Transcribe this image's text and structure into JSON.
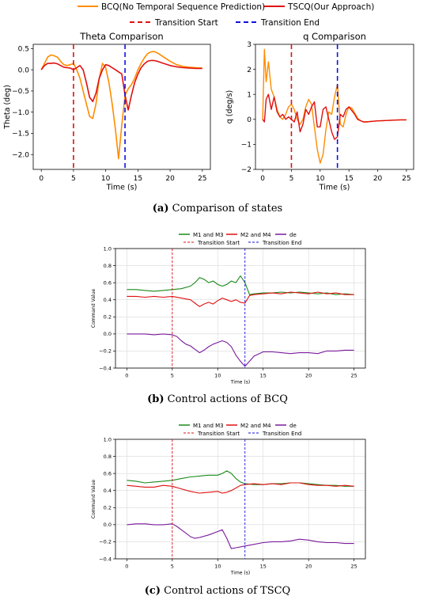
{
  "legend_top": {
    "entries": [
      {
        "label": "BCQ(No Temporal Sequence Prediction)",
        "color": "#ff8c00",
        "dash": false
      },
      {
        "label": "TSCQ(Our Approach)",
        "color": "#e01010",
        "dash": false
      },
      {
        "label": "Transition Start",
        "color": "#e01010",
        "dash": true
      },
      {
        "label": "Transition End",
        "color": "#1010e0",
        "dash": true
      }
    ]
  },
  "captions": {
    "a_tag": "(a)",
    "a_text": " Comparison of states",
    "b_tag": "(b)",
    "b_text": " Control actions of BCQ",
    "c_tag": "(c)",
    "c_text": " Control actions of TSCQ"
  },
  "chart_data": [
    {
      "id": "theta",
      "type": "line",
      "title": "Theta Comparison",
      "xlabel": "Time (s)",
      "ylabel": "Theta (deg)",
      "xlim": [
        -1.25,
        26.25
      ],
      "ylim": [
        -2.35,
        0.6
      ],
      "xticks": [
        0,
        5,
        10,
        15,
        20,
        25
      ],
      "yticks": [
        0.5,
        0.0,
        -0.5,
        -1.0,
        -1.5,
        -2.0
      ],
      "ytick_labels": [
        "0.5",
        "0.0",
        "−0.5",
        "−1.0",
        "−1.5",
        "−2.0"
      ],
      "grid": false,
      "vlines": [
        {
          "x": 5,
          "color": "#e01010"
        },
        {
          "x": 13,
          "color": "#1010e0"
        }
      ],
      "series": [
        {
          "name": "BCQ(No Temporal Sequence Prediction)",
          "color": "#ff8c00",
          "x": [
            0,
            0.5,
            1,
            1.5,
            2,
            2.5,
            3,
            3.5,
            4,
            4.5,
            5,
            5.5,
            6,
            6.5,
            7,
            7.5,
            8,
            8.5,
            9,
            9.5,
            10,
            10.5,
            11,
            11.5,
            12,
            12.5,
            13,
            13.5,
            14,
            14.5,
            15,
            15.5,
            16,
            16.5,
            17,
            17.5,
            18,
            19,
            20,
            21,
            22,
            23,
            24,
            25
          ],
          "y": [
            0.0,
            0.15,
            0.3,
            0.35,
            0.33,
            0.3,
            0.2,
            0.12,
            0.1,
            0.12,
            0.15,
            0.0,
            -0.2,
            -0.5,
            -0.8,
            -1.1,
            -1.15,
            -0.8,
            -0.2,
            0.15,
            0.05,
            -0.3,
            -0.8,
            -1.4,
            -2.1,
            -1.3,
            -0.6,
            -0.45,
            -0.35,
            -0.2,
            0.0,
            0.15,
            0.28,
            0.38,
            0.42,
            0.43,
            0.4,
            0.3,
            0.2,
            0.12,
            0.08,
            0.06,
            0.05,
            0.04
          ]
        },
        {
          "name": "TSCQ(Our Approach)",
          "color": "#e01010",
          "x": [
            0,
            0.5,
            1,
            1.5,
            2,
            2.5,
            3,
            3.5,
            4,
            4.5,
            5,
            5.5,
            6,
            6.5,
            7,
            7.5,
            8,
            8.5,
            9,
            9.5,
            10,
            10.5,
            11,
            11.5,
            12,
            12.5,
            13,
            13.5,
            14,
            14.5,
            15,
            15.5,
            16,
            16.5,
            17,
            17.5,
            18,
            19,
            20,
            21,
            22,
            23,
            24,
            25
          ],
          "y": [
            0.0,
            0.1,
            0.15,
            0.15,
            0.16,
            0.14,
            0.1,
            0.06,
            0.05,
            0.04,
            0.0,
            0.05,
            0.1,
            0.0,
            -0.3,
            -0.65,
            -0.75,
            -0.55,
            -0.2,
            0.0,
            0.12,
            0.1,
            0.05,
            0.0,
            -0.05,
            -0.1,
            -0.6,
            -0.95,
            -0.6,
            -0.3,
            -0.1,
            0.05,
            0.14,
            0.2,
            0.22,
            0.22,
            0.2,
            0.15,
            0.1,
            0.07,
            0.05,
            0.04,
            0.03,
            0.03
          ]
        }
      ]
    },
    {
      "id": "q",
      "type": "line",
      "title": "q Comparison",
      "xlabel": "Time (s)",
      "ylabel": "q (deg/s)",
      "xlim": [
        -1.25,
        26.25
      ],
      "ylim": [
        -2.0,
        3.0
      ],
      "xticks": [
        0,
        5,
        10,
        15,
        20,
        25
      ],
      "yticks": [
        3,
        2,
        1,
        0,
        -1,
        -2
      ],
      "ytick_labels": [
        "3",
        "2",
        "1",
        "0",
        "−1",
        "−2"
      ],
      "grid": false,
      "vlines": [
        {
          "x": 5,
          "color": "#e01010"
        },
        {
          "x": 13,
          "color": "#1010e0"
        }
      ],
      "series": [
        {
          "name": "BCQ(No Temporal Sequence Prediction)",
          "color": "#ff8c00",
          "x": [
            0,
            0.3,
            0.6,
            1,
            1.5,
            2,
            2.5,
            3,
            3.5,
            4,
            4.5,
            5,
            5.5,
            6,
            6.5,
            7,
            7.5,
            8,
            8.5,
            9,
            9.5,
            10,
            10.5,
            11,
            11.5,
            12,
            12.5,
            13,
            13.5,
            14,
            14.5,
            15,
            15.5,
            16,
            16.5,
            17,
            17.5,
            18,
            19,
            20,
            21,
            22,
            23,
            24,
            25
          ],
          "y": [
            0.0,
            2.8,
            1.5,
            2.3,
            1.2,
            0.9,
            0.4,
            0.1,
            0.0,
            0.2,
            0.5,
            0.6,
            0.4,
            0.0,
            -0.2,
            0.0,
            0.5,
            0.8,
            0.6,
            -0.3,
            -1.2,
            -1.75,
            -1.4,
            -0.4,
            0.3,
            0.2,
            0.9,
            1.4,
            -0.2,
            -0.3,
            0.2,
            0.5,
            0.45,
            0.25,
            0.05,
            -0.05,
            -0.1,
            -0.1,
            -0.08,
            -0.06,
            -0.05,
            -0.04,
            -0.03,
            -0.02,
            -0.02
          ]
        },
        {
          "name": "TSCQ(Our Approach)",
          "color": "#e01010",
          "x": [
            0,
            0.3,
            0.6,
            1,
            1.5,
            2,
            2.5,
            3,
            3.5,
            4,
            4.5,
            5,
            5.5,
            6,
            6.5,
            7,
            7.5,
            8,
            8.5,
            9,
            9.5,
            10,
            10.5,
            11,
            11.5,
            12,
            12.5,
            13,
            13.5,
            14,
            14.5,
            15,
            15.5,
            16,
            16.5,
            17,
            17.5,
            18,
            19,
            20,
            21,
            22,
            23,
            24,
            25
          ],
          "y": [
            0.0,
            -0.1,
            0.8,
            1.0,
            0.4,
            0.9,
            0.3,
            0.1,
            0.2,
            0.0,
            0.1,
            0.0,
            -0.1,
            0.3,
            -0.5,
            -0.2,
            0.4,
            0.2,
            0.5,
            0.7,
            -0.3,
            -0.3,
            0.4,
            0.5,
            0.0,
            -0.5,
            -0.8,
            -0.7,
            0.2,
            0.1,
            0.4,
            0.5,
            0.35,
            0.2,
            0.0,
            -0.05,
            -0.1,
            -0.1,
            -0.08,
            -0.06,
            -0.05,
            -0.04,
            -0.03,
            -0.02,
            -0.02
          ]
        }
      ]
    },
    {
      "id": "bcq_actions",
      "type": "line",
      "title": "",
      "xlabel": "Time (s)",
      "ylabel": "Command Value",
      "xlim": [
        -1.25,
        26.25
      ],
      "ylim": [
        -0.4,
        1.0
      ],
      "xticks": [
        0,
        5,
        10,
        15,
        20,
        25
      ],
      "yticks": [
        1.0,
        0.8,
        0.6,
        0.4,
        0.2,
        0.0,
        -0.2,
        -0.4
      ],
      "ytick_labels": [
        "1.0",
        "0.8",
        "0.6",
        "0.4",
        "0.2",
        "0.0",
        "−0.2",
        "−0.4"
      ],
      "grid": true,
      "legend": [
        "M1 and M3",
        "M2 and M4",
        "de",
        "Transition Start",
        "Transition End"
      ],
      "vlines": [
        {
          "x": 5,
          "color": "#e01010"
        },
        {
          "x": 13,
          "color": "#1010e0"
        }
      ],
      "series": [
        {
          "name": "M1 and M3",
          "color": "#1a8a1a",
          "x": [
            0,
            1,
            2,
            3,
            4,
            5,
            6,
            7,
            7.5,
            8,
            8.5,
            9,
            9.5,
            10,
            10.5,
            11,
            11.5,
            12,
            12.5,
            13,
            13.5,
            14,
            15,
            16,
            17,
            18,
            19,
            20,
            21,
            22,
            23,
            24,
            25
          ],
          "y": [
            0.52,
            0.52,
            0.51,
            0.5,
            0.51,
            0.52,
            0.53,
            0.56,
            0.6,
            0.66,
            0.64,
            0.6,
            0.62,
            0.58,
            0.56,
            0.58,
            0.62,
            0.6,
            0.68,
            0.6,
            0.46,
            0.47,
            0.48,
            0.48,
            0.49,
            0.48,
            0.49,
            0.48,
            0.47,
            0.48,
            0.46,
            0.47,
            0.46
          ]
        },
        {
          "name": "M2 and M4",
          "color": "#e01010",
          "x": [
            0,
            1,
            2,
            3,
            4,
            5,
            6,
            7,
            7.5,
            8,
            8.5,
            9,
            9.5,
            10,
            10.5,
            11,
            11.5,
            12,
            12.5,
            13,
            13.5,
            14,
            15,
            16,
            17,
            18,
            19,
            20,
            21,
            22,
            23,
            24,
            25
          ],
          "y": [
            0.44,
            0.44,
            0.43,
            0.44,
            0.43,
            0.44,
            0.42,
            0.4,
            0.36,
            0.32,
            0.35,
            0.37,
            0.35,
            0.39,
            0.42,
            0.4,
            0.38,
            0.4,
            0.37,
            0.36,
            0.45,
            0.46,
            0.47,
            0.48,
            0.47,
            0.49,
            0.48,
            0.47,
            0.49,
            0.47,
            0.48,
            0.46,
            0.46
          ]
        },
        {
          "name": "de",
          "color": "#7b1a9e",
          "x": [
            0,
            1,
            2,
            3,
            4,
            5,
            5.5,
            6,
            6.5,
            7,
            7.5,
            8,
            8.5,
            9,
            9.5,
            10,
            10.5,
            11,
            11.5,
            12,
            12.5,
            13,
            13.5,
            14,
            15,
            16,
            17,
            18,
            19,
            20,
            21,
            22,
            23,
            24,
            25
          ],
          "y": [
            0.0,
            0.0,
            0.0,
            -0.01,
            0.0,
            -0.01,
            -0.03,
            -0.08,
            -0.12,
            -0.14,
            -0.18,
            -0.22,
            -0.19,
            -0.15,
            -0.12,
            -0.1,
            -0.08,
            -0.1,
            -0.15,
            -0.25,
            -0.32,
            -0.38,
            -0.32,
            -0.26,
            -0.21,
            -0.21,
            -0.22,
            -0.23,
            -0.22,
            -0.22,
            -0.23,
            -0.2,
            -0.2,
            -0.19,
            -0.19
          ]
        }
      ]
    },
    {
      "id": "tscq_actions",
      "type": "line",
      "title": "",
      "xlabel": "Time (s)",
      "ylabel": "Command Value",
      "xlim": [
        -1.25,
        26.25
      ],
      "ylim": [
        -0.4,
        1.0
      ],
      "xticks": [
        0,
        5,
        10,
        15,
        20,
        25
      ],
      "yticks": [
        1.0,
        0.8,
        0.6,
        0.4,
        0.2,
        0.0,
        -0.2,
        -0.4
      ],
      "ytick_labels": [
        "1.0",
        "0.8",
        "0.6",
        "0.4",
        "0.2",
        "0.0",
        "−0.2",
        "−0.4"
      ],
      "grid": true,
      "legend": [
        "M1 and M3",
        "M2 and M4",
        "de",
        "Transition Start",
        "Transition End"
      ],
      "vlines": [
        {
          "x": 5,
          "color": "#e01010"
        },
        {
          "x": 13,
          "color": "#1010e0"
        }
      ],
      "series": [
        {
          "name": "M1 and M3",
          "color": "#1a8a1a",
          "x": [
            0,
            1,
            2,
            3,
            4,
            5,
            6,
            7,
            8,
            9,
            10,
            10.5,
            11,
            11.5,
            12,
            12.5,
            13,
            14,
            15,
            16,
            17,
            18,
            19,
            20,
            21,
            22,
            23,
            24,
            25
          ],
          "y": [
            0.52,
            0.51,
            0.49,
            0.5,
            0.51,
            0.52,
            0.54,
            0.56,
            0.57,
            0.58,
            0.58,
            0.6,
            0.63,
            0.6,
            0.54,
            0.5,
            0.48,
            0.47,
            0.47,
            0.48,
            0.48,
            0.49,
            0.49,
            0.48,
            0.47,
            0.46,
            0.46,
            0.45,
            0.45
          ]
        },
        {
          "name": "M2 and M4",
          "color": "#e01010",
          "x": [
            0,
            1,
            2,
            3,
            4,
            5,
            6,
            7,
            8,
            9,
            10,
            10.5,
            11,
            11.5,
            12,
            12.5,
            13,
            14,
            15,
            16,
            17,
            18,
            19,
            20,
            21,
            22,
            23,
            24,
            25
          ],
          "y": [
            0.46,
            0.45,
            0.44,
            0.44,
            0.46,
            0.45,
            0.42,
            0.39,
            0.37,
            0.38,
            0.39,
            0.37,
            0.38,
            0.4,
            0.43,
            0.46,
            0.47,
            0.48,
            0.47,
            0.48,
            0.47,
            0.49,
            0.49,
            0.47,
            0.46,
            0.46,
            0.45,
            0.46,
            0.45
          ]
        },
        {
          "name": "de",
          "color": "#7b1a9e",
          "x": [
            0,
            1,
            2,
            3,
            4,
            5,
            5.5,
            6,
            6.5,
            7,
            7.5,
            8,
            9,
            10,
            10.5,
            11,
            11.5,
            12,
            13,
            14,
            15,
            16,
            17,
            18,
            19,
            20,
            21,
            22,
            23,
            24,
            25
          ],
          "y": [
            0.0,
            0.01,
            0.01,
            0.0,
            0.0,
            0.01,
            -0.02,
            -0.06,
            -0.1,
            -0.14,
            -0.16,
            -0.15,
            -0.12,
            -0.08,
            -0.06,
            -0.16,
            -0.28,
            -0.27,
            -0.25,
            -0.23,
            -0.21,
            -0.2,
            -0.2,
            -0.19,
            -0.17,
            -0.18,
            -0.2,
            -0.21,
            -0.21,
            -0.22,
            -0.22
          ]
        }
      ]
    }
  ]
}
